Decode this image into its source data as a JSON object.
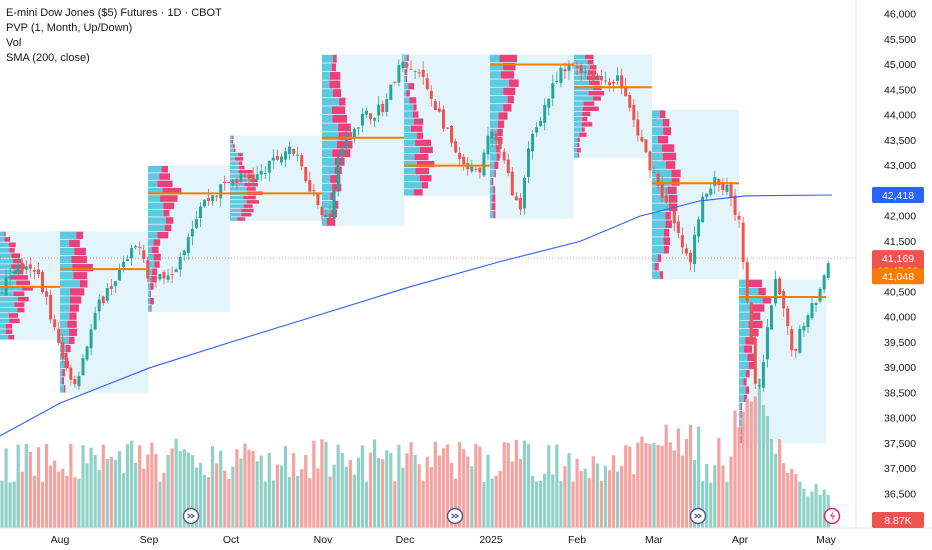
{
  "legend": {
    "title": "E-mini Dow Jones ($5) Futures · 1D · CBOT",
    "indicators": [
      "PVP (1, Month, Up/Down)",
      "Vol",
      "SMA (200, close)"
    ]
  },
  "colors": {
    "up": "#26a69a",
    "down": "#ef5350",
    "upVol": "#8fd0c7",
    "downVol": "#f5a3a1",
    "sma": "#2962ff",
    "poc": "#f57c00",
    "profileBg": "#e3f5fb",
    "profileUp": "#5dc9e0",
    "profileDown": "#ec407a"
  },
  "chart_data": {
    "type": "candlestick",
    "title": "E-mini Dow Jones ($5) Futures · 1D · CBOT",
    "y_ticks": [
      36500,
      37000,
      37500,
      38000,
      38500,
      39000,
      39500,
      40000,
      40500,
      41000,
      41500,
      42000,
      42500,
      43000,
      43500,
      44000,
      44500,
      45000,
      45500,
      46000
    ],
    "y_tick_labels": [
      "36,500",
      "37,000",
      "37,500",
      "38,000",
      "38,500",
      "39,000",
      "39,500",
      "40,000",
      "40,500",
      "41,000",
      "41,500",
      "42,000",
      "42,500",
      "43,000",
      "43,500",
      "44,000",
      "44,500",
      "45,000",
      "45,500",
      "46,000"
    ],
    "x_ticks": [
      "Aug",
      "Sep",
      "Oct",
      "Nov",
      "Dec",
      "2025",
      "Feb",
      "Mar",
      "Apr",
      "May"
    ],
    "price_badges": [
      {
        "label": "42,418",
        "value": 42418,
        "color": "#2962ff"
      },
      {
        "label": "41,169",
        "value": 41169,
        "color": "#ef5350"
      },
      {
        "label": "13:47:30",
        "value": null,
        "color": "#ef5350"
      },
      {
        "label": "41,048",
        "value": 41048,
        "color": "#f57c00"
      }
    ],
    "volume_badge": "8.87K",
    "monthly_poc": [
      {
        "month": "Jul",
        "poc": 40600
      },
      {
        "month": "Aug",
        "poc": 40950
      },
      {
        "month": "Sep",
        "poc": 42450
      },
      {
        "month": "Oct",
        "poc": 42450
      },
      {
        "month": "Nov",
        "poc": 43550
      },
      {
        "month": "Dec",
        "poc": 43000
      },
      {
        "month": "Jan",
        "poc": 45000
      },
      {
        "month": "Feb",
        "poc": 44550
      },
      {
        "month": "Mar",
        "poc": 42650
      },
      {
        "month": "Apr",
        "poc": 40400
      }
    ],
    "sma_last": 42418,
    "last_price": 41169
  }
}
